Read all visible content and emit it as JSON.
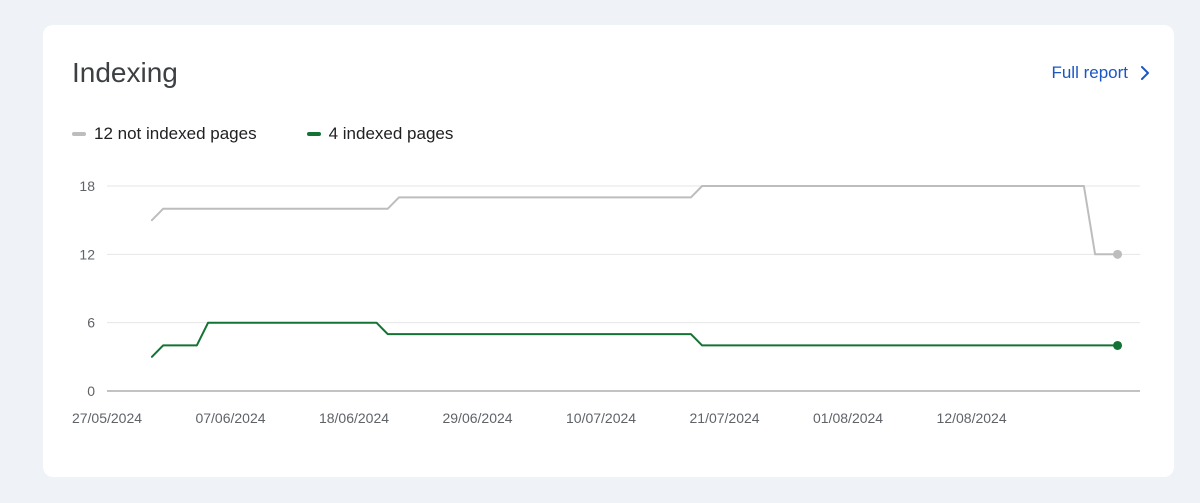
{
  "card": {
    "title": "Indexing",
    "full_report_label": "Full report",
    "full_report_icon": "chevron-right-icon"
  },
  "legend": [
    {
      "label": "12 not indexed pages",
      "color": "#bdbdbd"
    },
    {
      "label": "4 indexed pages",
      "color": "#137333"
    }
  ],
  "chart_data": {
    "type": "line",
    "title": "",
    "xlabel": "",
    "ylabel": "",
    "ylim": [
      0,
      18
    ],
    "yticks": [
      "0",
      "6",
      "12",
      "18"
    ],
    "xlim": [
      "2024-05-27",
      "2024-08-27"
    ],
    "xticks": [
      "27/05/2024",
      "07/06/2024",
      "18/06/2024",
      "29/06/2024",
      "10/07/2024",
      "21/07/2024",
      "01/08/2024",
      "12/08/2024"
    ],
    "grid": true,
    "legend_position": "top-left",
    "series": [
      {
        "name": "12 not indexed pages",
        "color": "#bdbdbd",
        "points": [
          [
            "2024-05-31",
            15
          ],
          [
            "2024-06-01",
            16
          ],
          [
            "2024-06-21",
            16
          ],
          [
            "2024-06-22",
            17
          ],
          [
            "2024-07-18",
            17
          ],
          [
            "2024-07-19",
            18
          ],
          [
            "2024-08-22",
            18
          ],
          [
            "2024-08-23",
            12
          ],
          [
            "2024-08-25",
            12
          ]
        ]
      },
      {
        "name": "4 indexed pages",
        "color": "#137333",
        "points": [
          [
            "2024-05-31",
            3
          ],
          [
            "2024-06-01",
            4
          ],
          [
            "2024-06-04",
            4
          ],
          [
            "2024-06-05",
            6
          ],
          [
            "2024-06-20",
            6
          ],
          [
            "2024-06-21",
            5
          ],
          [
            "2024-07-18",
            5
          ],
          [
            "2024-07-19",
            4
          ],
          [
            "2024-08-25",
            4
          ]
        ]
      }
    ]
  }
}
